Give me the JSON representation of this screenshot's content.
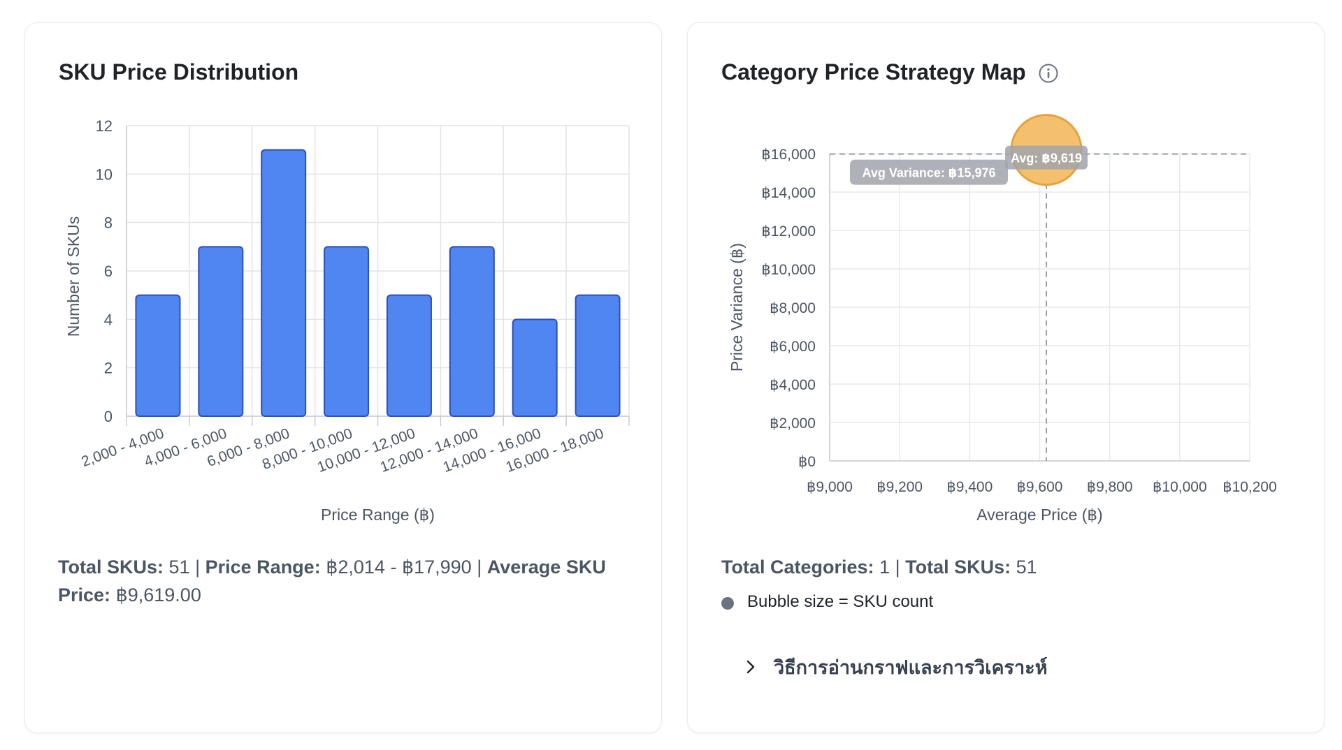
{
  "histogram": {
    "title": "SKU Price Distribution",
    "summary": {
      "total_skus_label": "Total SKUs:",
      "total_skus_value": "51",
      "price_range_label": "Price Range:",
      "price_range_value": "฿2,014 - ฿17,990",
      "average_label": "Average SKU Price:",
      "average_value": "฿9,619.00",
      "sep": "|"
    }
  },
  "strategy_map": {
    "title": "Category Price Strategy Map",
    "summary": {
      "total_categories_label": "Total Categories:",
      "total_categories_value": "1",
      "total_skus_label": "Total SKUs:",
      "total_skus_value": "51",
      "sep": "|"
    },
    "legend_text": "Bubble size = SKU count",
    "expander_label": "วิธีการอ่านกราฟและการวิเคราะห์"
  },
  "chart_data": [
    {
      "type": "bar",
      "title": "SKU Price Distribution",
      "xlabel": "Price Range (฿)",
      "ylabel": "Number of SKUs",
      "categories": [
        "2,000 - 4,000",
        "4,000 - 6,000",
        "6,000 - 8,000",
        "8,000 - 10,000",
        "10,000 - 12,000",
        "12,000 - 14,000",
        "14,000 - 16,000",
        "16,000 - 18,000"
      ],
      "values": [
        5,
        7,
        11,
        7,
        5,
        7,
        4,
        5
      ],
      "ylim": [
        0,
        12
      ],
      "yticks": [
        "0",
        "2",
        "4",
        "6",
        "8",
        "10",
        "12"
      ],
      "grid": true,
      "bar_color": "#4f86f1",
      "bar_border": "#2c4fb8"
    },
    {
      "type": "scatter",
      "title": "Category Price Strategy Map",
      "xlabel": "Average Price (฿)",
      "ylabel": "Price Variance (฿)",
      "xlim": [
        9000,
        10200
      ],
      "ylim": [
        0,
        16000
      ],
      "xticks": [
        "฿9,000",
        "฿9,200",
        "฿9,400",
        "฿9,600",
        "฿9,800",
        "฿10,000",
        "฿10,200"
      ],
      "yticks": [
        "฿0",
        "฿2,000",
        "฿4,000",
        "฿6,000",
        "฿8,000",
        "฿10,000",
        "฿12,000",
        "฿14,000",
        "฿16,000"
      ],
      "points": [
        {
          "x": 9619,
          "y": 15976,
          "size": 51
        }
      ],
      "avg_x": 9619,
      "avg_y": 15976,
      "avg_x_label": "Avg: ฿9,619",
      "avg_y_label": "Avg Variance: ฿15,976",
      "grid": true,
      "bubble_color": "#f5c06e",
      "bubble_border": "#e6a23c"
    }
  ]
}
